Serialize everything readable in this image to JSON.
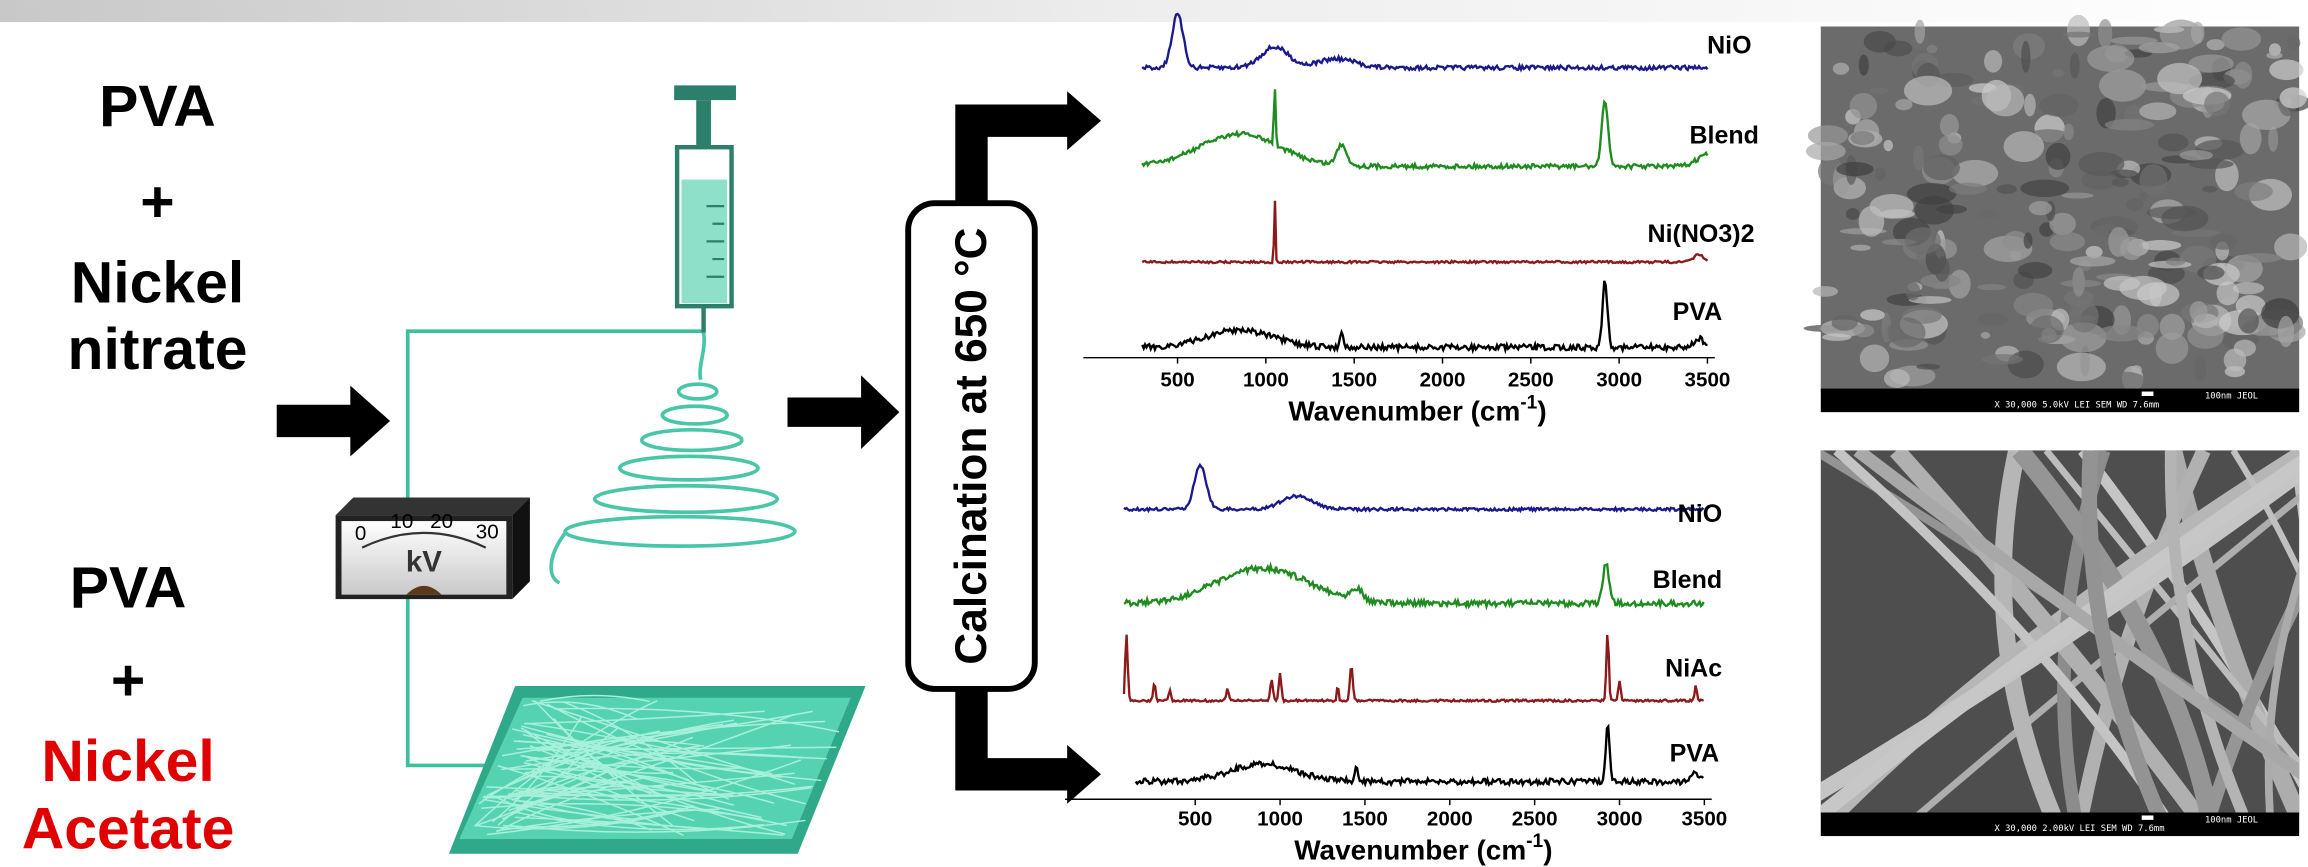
{
  "inputs": [
    {
      "lines": [
        "PVA",
        "+",
        "Nickel",
        "nitrate"
      ]
    },
    {
      "lines": [
        "PVA",
        "+",
        "Nickel",
        "Acetate"
      ]
    }
  ],
  "meter": {
    "scale": [
      "0",
      "10",
      "20",
      "30"
    ],
    "unit": "kV"
  },
  "process": "Calcination at 650 °C",
  "spectra": [
    {
      "labels": [
        "NiO",
        "Blend",
        "Ni(NO3)2",
        "PVA"
      ],
      "ticks": [
        "500",
        "1000",
        "1500",
        "2000",
        "2500",
        "3000",
        "3500"
      ],
      "xlabel": {
        "text": "Wavenumber (cm",
        "sup": "-1",
        "end": ")"
      }
    },
    {
      "labels": [
        "NiO",
        "Blend",
        "NiAc",
        "PVA"
      ],
      "ticks": [
        "500",
        "1000",
        "1500",
        "2000",
        "2500",
        "3000",
        "3500"
      ],
      "xlabel": {
        "text": "Wavenumber (cm",
        "sup": "-1",
        "end": ")"
      }
    }
  ],
  "micrographs": [
    {
      "caption": "X 30,000     5.0kV  LEI     SEM     WD 7.6mm",
      "scale": "100nm JEOL"
    },
    {
      "caption": "X 30,000     2.00kV  LEI     SEM     WD 7.6mm",
      "scale": "100nm JEOL"
    }
  ]
}
